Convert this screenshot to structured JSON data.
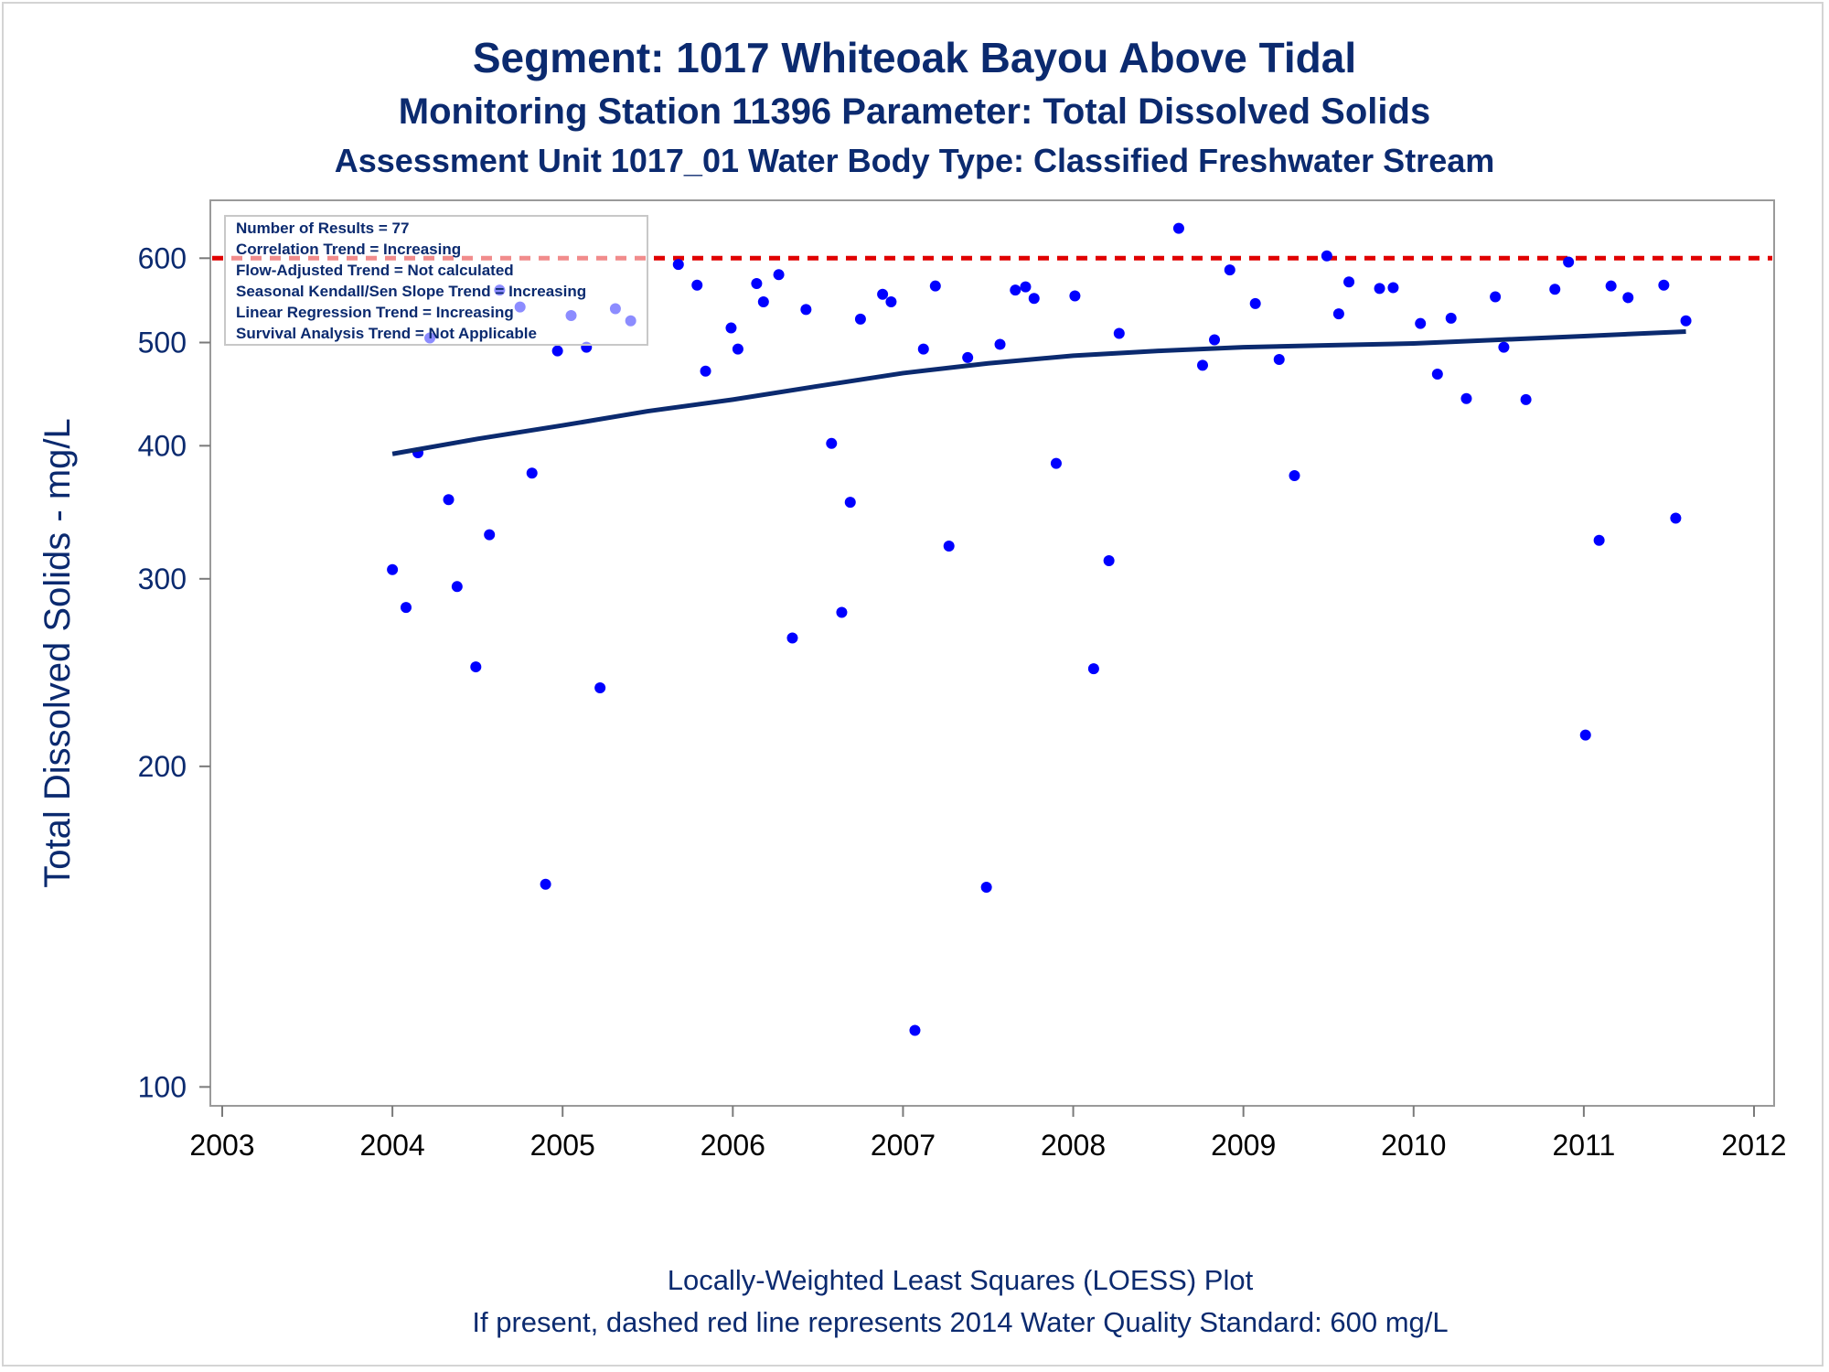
{
  "titles": {
    "line1": "Segment: 1017  Whiteoak Bayou Above Tidal",
    "line2": "Monitoring Station 11396 Parameter: Total Dissolved Solids",
    "line3": "Assessment Unit 1017_01   Water Body Type: Classified Freshwater Stream"
  },
  "footnotes": {
    "line1": "Locally-Weighted Least Squares (LOESS) Plot",
    "line2": "If present, dashed red line represents 2014 Water Quality Standard: 600   mg/L"
  },
  "stats_box": [
    "Number of Results = 77",
    "Correlation Trend = Increasing",
    "Flow-Adjusted Trend = Not calculated",
    "Seasonal Kendall/Sen Slope Trend = Increasing",
    "Linear Regression Trend = Increasing",
    "Survival Analysis Trend = Not Applicable"
  ],
  "colors": {
    "points": "#0000ff",
    "loess": "#0b2a6f",
    "standard_line": "#e00000",
    "text": "#0b2a6f",
    "frame": "#9a9a9a"
  },
  "chart_data": {
    "type": "scatter",
    "ylabel": "Total Dissolved Solids - mg/L",
    "xlabel": "",
    "yscale": "log",
    "xlim": [
      2003,
      2012
    ],
    "ylim": [
      96,
      680
    ],
    "x_ticks": [
      "2003",
      "2004",
      "2005",
      "2006",
      "2007",
      "2008",
      "2009",
      "2010",
      "2011",
      "2012"
    ],
    "y_ticks": [
      100,
      200,
      300,
      400,
      500,
      600
    ],
    "reference_line": {
      "value": 600,
      "style": "dashed"
    },
    "series": [
      {
        "kind": "points",
        "x": [
          2004.0,
          2004.08,
          2004.15,
          2004.22,
          2004.33,
          2004.38,
          2004.49,
          2004.57,
          2004.63,
          2004.75,
          2004.82,
          2004.9,
          2004.97,
          2005.05,
          2005.14,
          2005.22,
          2005.31,
          2005.4,
          2005.68,
          2005.79,
          2005.84,
          2005.99,
          2006.03,
          2006.14,
          2006.18,
          2006.27,
          2006.35,
          2006.43,
          2006.58,
          2006.64,
          2006.69,
          2006.75,
          2006.88,
          2006.93,
          2007.07,
          2007.12,
          2007.19,
          2007.27,
          2007.38,
          2007.49,
          2007.57,
          2007.66,
          2007.72,
          2007.77,
          2007.9,
          2008.01,
          2008.12,
          2008.21,
          2008.27,
          2008.62,
          2008.76,
          2008.83,
          2008.92,
          2009.07,
          2009.21,
          2009.3,
          2009.49,
          2009.56,
          2009.62,
          2009.8,
          2009.88,
          2010.04,
          2010.14,
          2010.22,
          2010.31,
          2010.48,
          2010.53,
          2010.66,
          2010.83,
          2010.91,
          2011.01,
          2011.09,
          2011.16,
          2011.26,
          2011.47,
          2011.54,
          2011.6
        ],
        "y": [
          306,
          282,
          394,
          505,
          356,
          295,
          248,
          330,
          560,
          540,
          377,
          155,
          491,
          530,
          495,
          237,
          538,
          524,
          592,
          566,
          470,
          516,
          493,
          568,
          546,
          579,
          264,
          537,
          402,
          279,
          354,
          526,
          555,
          546,
          113,
          493,
          565,
          322,
          484,
          154,
          498,
          560,
          564,
          550,
          385,
          553,
          247,
          312,
          510,
          640,
          476,
          503,
          585,
          544,
          482,
          375,
          603,
          532,
          570,
          562,
          563,
          521,
          467,
          527,
          443,
          552,
          495,
          442,
          561,
          595,
          214,
          326,
          565,
          551,
          566,
          342,
          524
        ]
      },
      {
        "kind": "loess",
        "x": [
          2004.0,
          2004.5,
          2005.0,
          2005.5,
          2006.0,
          2006.5,
          2007.0,
          2007.5,
          2008.0,
          2008.5,
          2009.0,
          2009.5,
          2010.0,
          2010.5,
          2011.0,
          2011.6
        ],
        "y": [
          393,
          406,
          418,
          431,
          442,
          455,
          468,
          478,
          486,
          491,
          495,
          497,
          499,
          503,
          507,
          512
        ]
      }
    ]
  }
}
